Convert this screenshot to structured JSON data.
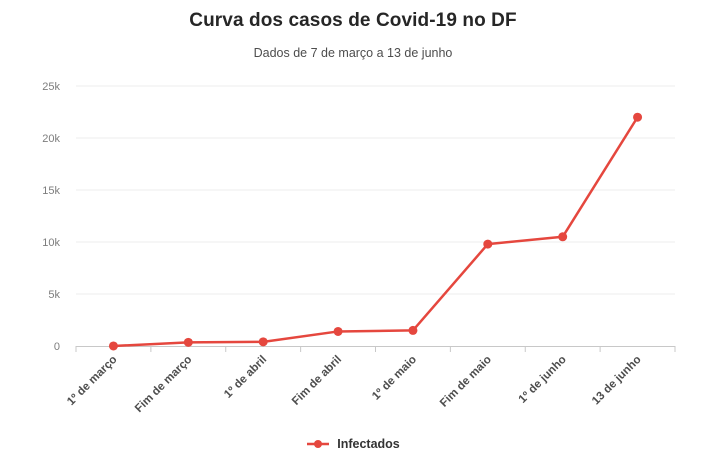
{
  "chart_data": {
    "type": "line",
    "title": "Curva dos casos de Covid-19 no DF",
    "subtitle": "Dados de 7 de março a 13 de junho",
    "categories": [
      "1º de março",
      "Fim de março",
      "1º de abril",
      "Fim de abril",
      "1º de maio",
      "Fim de maio",
      "1º de junho",
      "13 de junho"
    ],
    "series": [
      {
        "name": "Infectados",
        "color": "#e5473e",
        "values": [
          1,
          350,
          400,
          1400,
          1500,
          9800,
          10500,
          22000
        ]
      }
    ],
    "ylim": [
      0,
      25000
    ],
    "yticks": [
      {
        "value": 0,
        "label": "0"
      },
      {
        "value": 5000,
        "label": "5k"
      },
      {
        "value": 10000,
        "label": "10k"
      },
      {
        "value": 15000,
        "label": "15k"
      },
      {
        "value": 20000,
        "label": "20k"
      },
      {
        "value": 25000,
        "label": "25k"
      }
    ],
    "grid": true,
    "legend_position": "bottom",
    "xlabel": "",
    "ylabel": ""
  }
}
